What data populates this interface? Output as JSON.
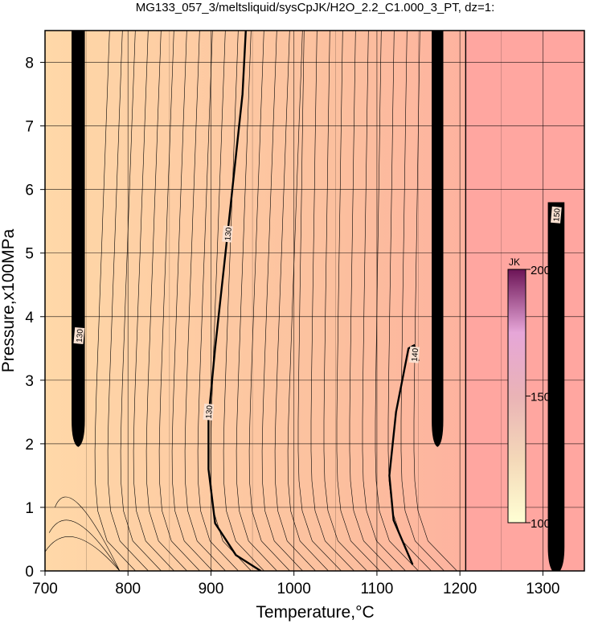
{
  "chart_data": {
    "type": "heatmap",
    "title": "MG133_057_3/meltsliquid/sysCpJK/H2O_2.2_C1.000_3_PT, dz=1:",
    "xlabel": "Temperature,°C",
    "ylabel": "Pressure,x100MPa",
    "xlim": [
      700,
      1350
    ],
    "ylim": [
      0,
      8.5
    ],
    "x_ticks": [
      700,
      800,
      900,
      1000,
      1100,
      1200,
      1300
    ],
    "y_ticks": [
      0,
      1,
      2,
      3,
      4,
      5,
      6,
      7,
      8
    ],
    "x_tick_labels": [
      "700",
      "800",
      "900",
      "1000",
      "1100",
      "1200",
      "1300"
    ],
    "y_tick_labels": [
      "0",
      "1",
      "2",
      "3",
      "4",
      "5",
      "6",
      "7",
      "8"
    ],
    "grid": true,
    "colorbar": {
      "label": "JK",
      "range": [
        100,
        200
      ],
      "ticks": [
        100,
        150,
        200
      ],
      "tick_labels": [
        "100",
        "150",
        "200"
      ],
      "colors": [
        "#ffffd4",
        "#f4d8b8",
        "#eab3b6",
        "#e6a6d8",
        "#6c1456"
      ]
    },
    "field_colors": {
      "low_T": "#ffd8a8",
      "mid_T": "#fcbf9e",
      "high_T": "#ffa6a0"
    },
    "bold_contours": [
      {
        "label": "130",
        "points": [
          [
            960,
            0
          ],
          [
            930,
            0.25
          ],
          [
            905,
            0.75
          ],
          [
            897,
            1.6
          ],
          [
            897,
            2.4
          ],
          [
            905,
            3.5
          ],
          [
            920,
            5.3
          ],
          [
            938,
            7.5
          ],
          [
            942,
            8.5
          ]
        ]
      },
      {
        "label": "140",
        "points": [
          [
            1143,
            0.1
          ],
          [
            1120,
            0.8
          ],
          [
            1115,
            1.5
          ],
          [
            1123,
            2.5
          ],
          [
            1138,
            3.5
          ],
          [
            1145,
            3.55
          ],
          [
            1150,
            3.3
          ]
        ]
      }
    ],
    "dense_bands": [
      {
        "x": [
          732,
          748
        ],
        "y": [
          2.0,
          8.5
        ]
      },
      {
        "x": [
          1166,
          1180
        ],
        "y": [
          2.0,
          8.5
        ]
      },
      {
        "x": [
          1306,
          1326
        ],
        "y": [
          0.0,
          5.8
        ]
      }
    ],
    "contour_labels": [
      {
        "text": "130",
        "x": 920,
        "y": 5.3
      },
      {
        "text": "130",
        "x": 897,
        "y": 2.5
      },
      {
        "text": "140",
        "x": 1145,
        "y": 3.4
      },
      {
        "text": "130",
        "x": 741,
        "y": 3.7
      },
      {
        "text": "150",
        "x": 1316,
        "y": 5.6
      }
    ],
    "boundary_line": {
      "x": 1207
    }
  }
}
